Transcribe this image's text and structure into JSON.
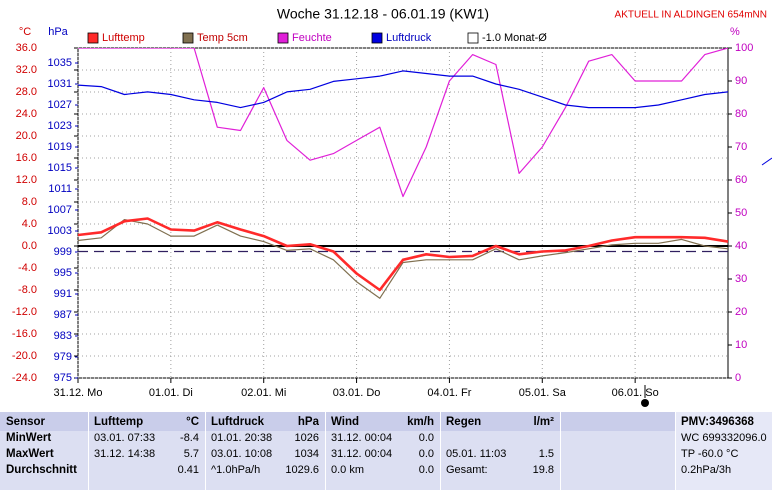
{
  "chart_data": {
    "type": "line",
    "title": "Woche 31.12.18 - 06.01.19 (KW1)",
    "annotation": "AKTUELL IN ALDINGEN 654mNN",
    "y_label": "°C",
    "y2_label": "hPa",
    "y3_label": "%",
    "x": [
      0,
      6,
      12,
      18,
      24,
      30,
      36,
      42,
      48,
      54,
      60,
      66,
      72,
      78,
      84,
      90,
      96,
      102,
      108,
      114,
      120,
      126,
      132,
      138,
      144,
      150,
      156,
      162,
      168
    ],
    "xlim": [
      0,
      168
    ],
    "xticks": [
      {
        "value": 0,
        "label": "31.12.  Mo"
      },
      {
        "value": 24,
        "label": "01.01.  Di"
      },
      {
        "value": 48,
        "label": "02.01.  Mi"
      },
      {
        "value": 72,
        "label": "03.01.  Do"
      },
      {
        "value": 96,
        "label": "04.01.  Fr"
      },
      {
        "value": 120,
        "label": "05.01.  Sa"
      },
      {
        "value": 144,
        "label": "06.01.  So"
      }
    ],
    "ylim": [
      -24,
      36
    ],
    "yticks": [
      {
        "value": 36,
        "label": "36.0"
      },
      {
        "value": 32,
        "label": "32.0"
      },
      {
        "value": 28,
        "label": "28.0"
      },
      {
        "value": 24,
        "label": "24.0"
      },
      {
        "value": 20,
        "label": "20.0"
      },
      {
        "value": 16,
        "label": "16.0"
      },
      {
        "value": 12,
        "label": "12.0"
      },
      {
        "value": 8,
        "label": "8.0"
      },
      {
        "value": 4,
        "label": "4.0"
      },
      {
        "value": 0,
        "label": "0.0"
      },
      {
        "value": -4,
        "label": "-4.0"
      },
      {
        "value": -8,
        "label": "-8.0"
      },
      {
        "value": -12,
        "label": "-12.0"
      },
      {
        "value": -16,
        "label": "-16.0"
      },
      {
        "value": -20,
        "label": "-20.0"
      },
      {
        "value": -24,
        "label": "-24.0"
      }
    ],
    "y2lim": [
      975,
      1037.86
    ],
    "y2ticks": [
      1035,
      1031,
      1027,
      1023,
      1019,
      1015,
      1011,
      1007,
      1003,
      999,
      995,
      991,
      987,
      983,
      979,
      975
    ],
    "y3lim": [
      0,
      100
    ],
    "y3ticks": [
      100,
      90,
      80,
      70,
      60,
      50,
      40,
      30,
      20,
      10,
      0
    ],
    "grid": true,
    "series": [
      {
        "name": "Lufttemp",
        "color": "#ff2a2a",
        "axis": "y",
        "values": [
          2.0,
          2.5,
          4.5,
          5.0,
          3.0,
          2.8,
          4.3,
          3.0,
          1.8,
          0.0,
          0.3,
          -1.0,
          -5.0,
          -8.0,
          -2.5,
          -1.5,
          -2.0,
          -1.8,
          0.0,
          -1.5,
          -1.0,
          -0.8,
          0.0,
          1.0,
          1.6,
          1.6,
          1.6,
          1.5,
          0.8
        ]
      },
      {
        "name": "Temp 5cm",
        "color": "#807050",
        "axis": "y",
        "values": [
          1.0,
          1.5,
          4.8,
          4.0,
          1.8,
          1.8,
          3.8,
          1.8,
          0.8,
          -0.8,
          -0.5,
          -2.5,
          -6.5,
          -9.5,
          -3.0,
          -2.5,
          -2.5,
          -2.5,
          -0.5,
          -2.5,
          -1.8,
          -1.2,
          -0.5,
          0.2,
          0.5,
          0.5,
          1.2,
          0.0,
          -0.5
        ]
      },
      {
        "name": "Feuchte",
        "color": "#e020d8",
        "axis": "y3",
        "values": [
          100,
          100,
          100,
          100,
          100,
          100,
          76,
          75,
          88,
          72,
          66,
          68,
          72,
          76,
          55,
          70,
          90,
          98,
          95,
          62,
          70,
          82,
          96,
          98,
          90,
          90,
          90,
          98,
          100
        ]
      },
      {
        "name": "Luftdruck",
        "color": "#0000e0",
        "axis": "y2",
        "values": [
          1030.8,
          1030.5,
          1029.0,
          1029.5,
          1029.0,
          1028.0,
          1027.5,
          1026.5,
          1027.5,
          1029.5,
          1030.0,
          1031.5,
          1032.0,
          1032.5,
          1033.5,
          1033.0,
          1032.5,
          1032.5,
          1031.0,
          1030.0,
          1028.5,
          1027.0,
          1026.5,
          1026.5,
          1026.5,
          1027.0,
          1028.0,
          1029.0,
          1029.5
        ]
      }
    ],
    "reference_line": {
      "name": "-1.0 Monat-Ø",
      "value": -1.0
    }
  },
  "table": {
    "header": [
      "Sensor",
      "Lufttemp",
      "°C",
      "Luftdruck",
      "hPa",
      "Wind",
      "km/h",
      "Regen",
      "l/m²",
      null,
      null,
      "PMV:3496368"
    ],
    "rows": [
      [
        "MinWert",
        "03.01.  07:33",
        "-8.4",
        "01.01.  20:38",
        "1026",
        "31.12.  00:04",
        "0.0",
        null,
        null,
        null,
        null,
        "WC 699332096.0"
      ],
      [
        "MaxWert",
        "31.12.  14:38",
        "5.7",
        "03.01.  10:08",
        "1034",
        "31.12.  00:04",
        "0.0",
        "05.01.  11:03",
        "1.5",
        null,
        null,
        "TP -60.0 °C"
      ],
      [
        "Durchschnitt",
        null,
        "0.41",
        "^1.0hPa/h",
        "1029.6",
        "0.0 km",
        "0.0",
        "Gesamt:",
        "19.8",
        null,
        null,
        "0.2hPa/3h"
      ]
    ]
  }
}
